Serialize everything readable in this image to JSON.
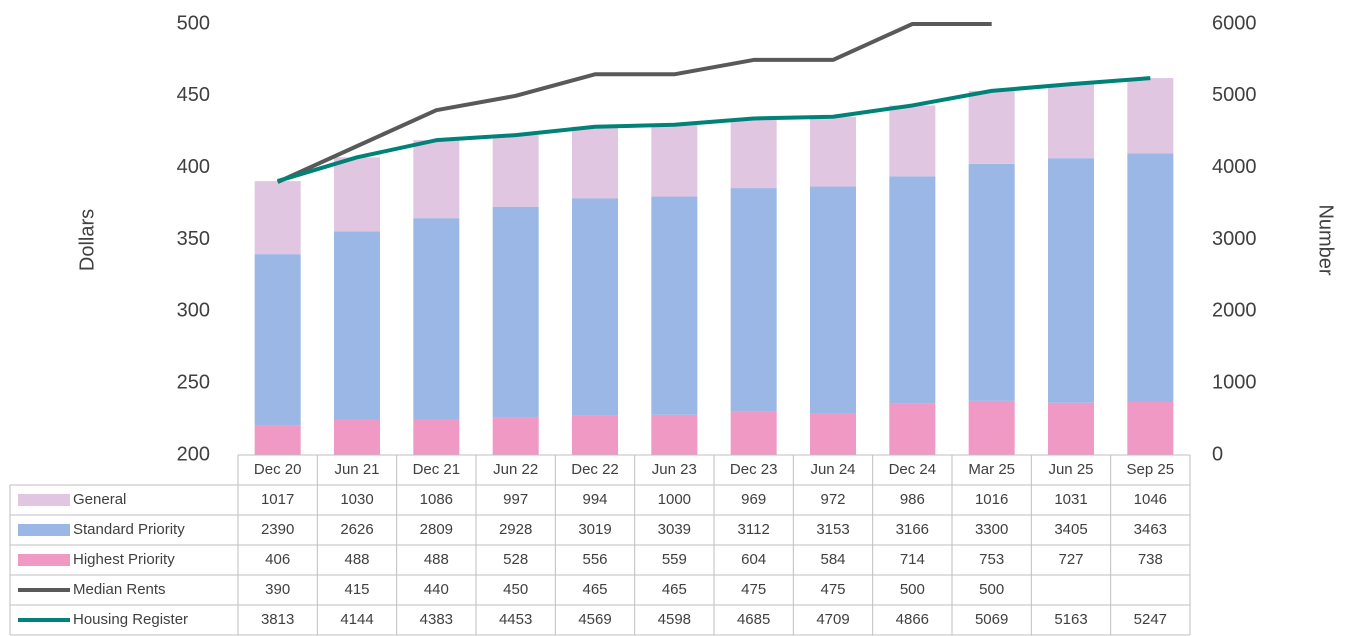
{
  "chart_data": {
    "type": "bar",
    "y_label": "Dollars",
    "y2_label": "Number",
    "categories": [
      "Dec 20",
      "Jun 21",
      "Dec 21",
      "Jun 22",
      "Dec 22",
      "Jun 23",
      "Dec 23",
      "Jun 24",
      "Dec 24",
      "Mar 25",
      "Jun 25",
      "Sep 25"
    ],
    "series": [
      {
        "name": "General",
        "type": "bar",
        "axis": "y2",
        "color": "#e0c6e1",
        "values": [
          1017,
          1030,
          1086,
          997,
          994,
          1000,
          969,
          972,
          986,
          1016,
          1031,
          1046
        ]
      },
      {
        "name": "Standard Priority",
        "type": "bar",
        "axis": "y2",
        "color": "#9bb7e6",
        "values": [
          2390,
          2626,
          2809,
          2928,
          3019,
          3039,
          3112,
          3153,
          3166,
          3300,
          3405,
          3463
        ]
      },
      {
        "name": "Highest Priority",
        "type": "bar",
        "axis": "y2",
        "color": "#ef99c4",
        "values": [
          406,
          488,
          488,
          528,
          556,
          559,
          604,
          584,
          714,
          753,
          727,
          738
        ]
      },
      {
        "name": "Median Rents",
        "type": "line",
        "axis": "y",
        "color": "#595959",
        "values": [
          390,
          415,
          440,
          450,
          465,
          465,
          475,
          475,
          500,
          500,
          null,
          null
        ]
      },
      {
        "name": "Housing Register",
        "type": "line",
        "axis": "y2",
        "color": "#008279",
        "values": [
          3813,
          4144,
          4383,
          4453,
          4569,
          4598,
          4685,
          4709,
          4866,
          5069,
          5163,
          5247
        ]
      }
    ],
    "ylim": [
      200,
      500
    ],
    "yticks": [
      200,
      250,
      300,
      350,
      400,
      450,
      500
    ],
    "y2lim": [
      0,
      6000
    ],
    "y2ticks": [
      0,
      1000,
      2000,
      3000,
      4000,
      5000,
      6000
    ],
    "grid": false
  }
}
